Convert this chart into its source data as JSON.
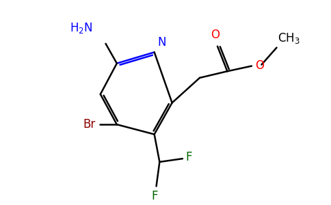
{
  "bg_color": "#ffffff",
  "atom_colors": {
    "N": "#0000ff",
    "O": "#ff0000",
    "Br": "#8b0000",
    "F": "#006400",
    "H2N": "#0000ff",
    "C": "#000000"
  },
  "figsize": [
    4.84,
    3.0
  ],
  "dpi": 100
}
